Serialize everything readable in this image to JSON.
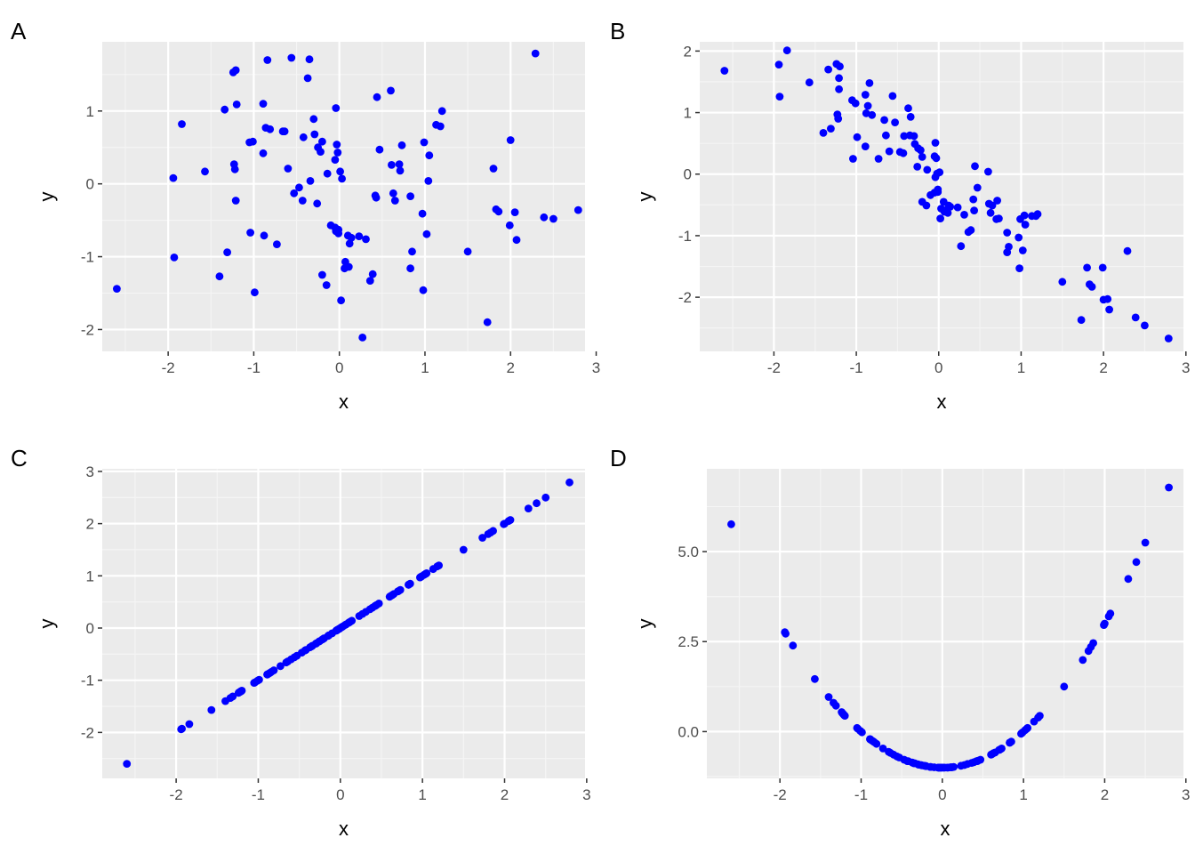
{
  "colors": {
    "panel_bg": "#ebebeb",
    "grid_major": "#ffffff",
    "grid_minor": "#f5f5f5",
    "point": "#0000ff",
    "tick": "#333333",
    "tick_label": "#4d4d4d"
  },
  "chart_data": [
    {
      "type": "scatter",
      "tag": "A",
      "xlabel": "x",
      "ylabel": "y",
      "xlim": [
        -2.77,
        2.87
      ],
      "ylim": [
        -2.3,
        1.95
      ],
      "xticks": [
        -2,
        -1,
        0,
        1,
        2,
        3
      ],
      "yticks": [
        -2,
        -1,
        0,
        1
      ],
      "xtick_labels": [
        "-2",
        "-1",
        "0",
        "1",
        "2",
        "3"
      ],
      "ytick_labels": [
        "-2",
        "-1",
        "0",
        "1"
      ],
      "grid": true,
      "x": [
        -2.6,
        -1.94,
        -1.93,
        -1.84,
        -1.57,
        -1.4,
        -1.34,
        -1.31,
        -1.24,
        -1.23,
        -1.22,
        -1.21,
        -1.21,
        -1.2,
        -1.05,
        -1.04,
        -1.01,
        -0.99,
        -0.89,
        -0.89,
        -0.88,
        -0.86,
        -0.84,
        -0.81,
        -0.73,
        -0.66,
        -0.64,
        -0.6,
        -0.56,
        -0.53,
        -0.47,
        -0.43,
        -0.42,
        -0.37,
        -0.35,
        -0.34,
        -0.3,
        -0.29,
        -0.26,
        -0.25,
        -0.22,
        -0.2,
        -0.2,
        -0.15,
        -0.14,
        -0.1,
        -0.05,
        -0.05,
        -0.04,
        -0.04,
        -0.03,
        -0.02,
        -0.01,
        -0.01,
        0.01,
        0.02,
        0.03,
        0.06,
        0.07,
        0.1,
        0.11,
        0.12,
        0.14,
        0.23,
        0.27,
        0.31,
        0.36,
        0.39,
        0.42,
        0.43,
        0.44,
        0.47,
        0.6,
        0.61,
        0.63,
        0.65,
        0.7,
        0.71,
        0.73,
        0.83,
        0.83,
        0.85,
        0.97,
        0.98,
        0.99,
        1.02,
        1.04,
        1.05,
        1.13,
        1.18,
        1.2,
        1.5,
        1.73,
        1.8,
        1.83,
        1.86,
        1.99,
        2.0,
        2.05,
        2.07,
        2.29,
        2.39,
        2.5,
        2.79
      ],
      "y": [
        -1.44,
        0.08,
        -1.01,
        0.82,
        0.17,
        -1.27,
        1.02,
        -0.94,
        1.53,
        0.27,
        0.2,
        -0.23,
        1.56,
        1.09,
        0.57,
        -0.67,
        0.58,
        -1.49,
        1.1,
        0.42,
        -0.71,
        0.77,
        1.7,
        0.75,
        -0.83,
        0.72,
        0.72,
        0.21,
        1.73,
        -0.13,
        -0.05,
        -0.23,
        0.64,
        1.45,
        1.71,
        0.04,
        0.89,
        0.68,
        -0.27,
        0.5,
        0.44,
        0.58,
        -1.25,
        -1.39,
        0.14,
        -0.57,
        0.33,
        -0.6,
        -0.65,
        1.04,
        0.54,
        0.43,
        -0.63,
        -0.68,
        0.17,
        -1.6,
        0.07,
        -1.16,
        -1.07,
        -0.71,
        -1.14,
        -0.82,
        -0.74,
        -0.72,
        -2.11,
        -0.76,
        -1.33,
        -1.24,
        -0.16,
        -0.19,
        1.19,
        0.47,
        1.28,
        0.26,
        -0.13,
        -0.23,
        0.27,
        0.18,
        0.53,
        -0.17,
        -1.16,
        -0.93,
        -0.41,
        -1.46,
        0.57,
        -0.69,
        0.04,
        0.39,
        0.81,
        0.79,
        1.0,
        -0.93,
        -1.9,
        0.21,
        -0.35,
        -0.38,
        -0.57,
        0.6,
        -0.39,
        -0.77,
        1.79,
        -0.46,
        -0.48,
        -0.36
      ]
    },
    {
      "type": "scatter",
      "tag": "B",
      "xlabel": "x",
      "ylabel": "y",
      "xlim": [
        -2.9,
        2.97
      ],
      "ylim": [
        -2.88,
        2.15
      ],
      "xticks": [
        -2,
        -1,
        0,
        1,
        2,
        3
      ],
      "yticks": [
        -2,
        -1,
        0,
        1,
        2
      ],
      "xtick_labels": [
        "-2",
        "-1",
        "0",
        "1",
        "2",
        "3"
      ],
      "ytick_labels": [
        "-2",
        "-1",
        "0",
        "1",
        "2"
      ],
      "grid": true,
      "x": [
        -2.6,
        -1.94,
        -1.93,
        -1.84,
        -1.57,
        -1.4,
        -1.34,
        -1.31,
        -1.24,
        -1.23,
        -1.22,
        -1.21,
        -1.21,
        -1.2,
        -1.05,
        -1.04,
        -1.01,
        -0.99,
        -0.89,
        -0.89,
        -0.88,
        -0.86,
        -0.84,
        -0.81,
        -0.73,
        -0.66,
        -0.64,
        -0.6,
        -0.56,
        -0.53,
        -0.47,
        -0.43,
        -0.42,
        -0.37,
        -0.35,
        -0.34,
        -0.3,
        -0.29,
        -0.26,
        -0.25,
        -0.22,
        -0.2,
        -0.2,
        -0.15,
        -0.14,
        -0.1,
        -0.05,
        -0.05,
        -0.04,
        -0.04,
        -0.03,
        -0.02,
        -0.01,
        -0.01,
        0.01,
        0.02,
        0.03,
        0.06,
        0.07,
        0.1,
        0.11,
        0.12,
        0.14,
        0.23,
        0.27,
        0.31,
        0.36,
        0.39,
        0.42,
        0.43,
        0.44,
        0.47,
        0.6,
        0.61,
        0.63,
        0.65,
        0.7,
        0.71,
        0.73,
        0.83,
        0.83,
        0.85,
        0.97,
        0.98,
        0.99,
        1.02,
        1.04,
        1.05,
        1.13,
        1.18,
        1.2,
        1.5,
        1.73,
        1.8,
        1.83,
        1.86,
        1.99,
        2.0,
        2.05,
        2.07,
        2.29,
        2.39,
        2.5,
        2.79
      ],
      "y": [
        1.68,
        1.78,
        1.26,
        2.01,
        1.49,
        0.67,
        1.7,
        0.74,
        1.79,
        0.97,
        0.9,
        1.38,
        1.56,
        1.75,
        1.2,
        0.25,
        1.15,
        0.6,
        1.29,
        0.45,
        0.99,
        1.11,
        1.48,
        0.96,
        0.25,
        0.88,
        0.63,
        0.37,
        1.27,
        0.84,
        0.36,
        0.34,
        0.62,
        1.07,
        0.63,
        0.93,
        0.62,
        0.49,
        0.12,
        0.42,
        0.39,
        0.28,
        -0.45,
        -0.51,
        0.07,
        -0.34,
        0.29,
        -0.3,
        -0.05,
        0.51,
        0.26,
        0.01,
        -0.25,
        -0.29,
        0.03,
        -0.72,
        -0.56,
        -0.45,
        -0.61,
        -0.58,
        -0.63,
        -0.51,
        -0.53,
        -0.54,
        -1.17,
        -0.66,
        -0.94,
        -0.91,
        -0.41,
        -0.59,
        0.13,
        -0.22,
        0.04,
        -0.48,
        -0.63,
        -0.51,
        -0.73,
        -0.43,
        -0.72,
        -0.95,
        -1.27,
        -1.18,
        -1.03,
        -1.53,
        -0.73,
        -1.24,
        -0.67,
        -0.82,
        -0.68,
        -0.68,
        -0.65,
        -1.75,
        -2.37,
        -1.52,
        -1.79,
        -1.83,
        -1.52,
        -2.04,
        -2.03,
        -2.2,
        -1.25,
        -2.33,
        -2.46,
        -2.67
      ]
    },
    {
      "type": "scatter",
      "tag": "C",
      "xlabel": "x",
      "ylabel": "y",
      "xlim": [
        -2.9,
        2.98
      ],
      "ylim": [
        -2.88,
        3.05
      ],
      "xticks": [
        -2,
        -1,
        0,
        1,
        2,
        3
      ],
      "yticks": [
        -2,
        -1,
        0,
        1,
        2,
        3
      ],
      "xtick_labels": [
        "-2",
        "-1",
        "0",
        "1",
        "2",
        "3"
      ],
      "ytick_labels": [
        "-2",
        "-1",
        "0",
        "1",
        "2",
        "3"
      ],
      "grid": true,
      "x": [
        -2.6,
        -1.94,
        -1.93,
        -1.84,
        -1.57,
        -1.4,
        -1.34,
        -1.31,
        -1.24,
        -1.23,
        -1.22,
        -1.21,
        -1.21,
        -1.2,
        -1.05,
        -1.04,
        -1.01,
        -0.99,
        -0.89,
        -0.89,
        -0.88,
        -0.86,
        -0.84,
        -0.81,
        -0.73,
        -0.66,
        -0.64,
        -0.6,
        -0.56,
        -0.53,
        -0.47,
        -0.43,
        -0.42,
        -0.37,
        -0.35,
        -0.34,
        -0.3,
        -0.29,
        -0.26,
        -0.25,
        -0.22,
        -0.2,
        -0.2,
        -0.15,
        -0.14,
        -0.1,
        -0.05,
        -0.05,
        -0.04,
        -0.04,
        -0.03,
        -0.02,
        -0.01,
        -0.01,
        0.01,
        0.02,
        0.03,
        0.06,
        0.07,
        0.1,
        0.11,
        0.12,
        0.14,
        0.23,
        0.27,
        0.31,
        0.36,
        0.39,
        0.42,
        0.43,
        0.44,
        0.47,
        0.6,
        0.61,
        0.63,
        0.65,
        0.7,
        0.71,
        0.73,
        0.83,
        0.83,
        0.85,
        0.97,
        0.98,
        0.99,
        1.02,
        1.04,
        1.05,
        1.13,
        1.18,
        1.2,
        1.5,
        1.73,
        1.8,
        1.83,
        1.86,
        1.99,
        2.0,
        2.05,
        2.07,
        2.29,
        2.39,
        2.5,
        2.79
      ],
      "y": [
        -2.6,
        -1.94,
        -1.93,
        -1.84,
        -1.57,
        -1.4,
        -1.34,
        -1.31,
        -1.24,
        -1.23,
        -1.22,
        -1.21,
        -1.21,
        -1.2,
        -1.05,
        -1.04,
        -1.01,
        -0.99,
        -0.89,
        -0.89,
        -0.88,
        -0.86,
        -0.84,
        -0.81,
        -0.73,
        -0.66,
        -0.64,
        -0.6,
        -0.56,
        -0.53,
        -0.47,
        -0.43,
        -0.42,
        -0.37,
        -0.35,
        -0.34,
        -0.3,
        -0.29,
        -0.26,
        -0.25,
        -0.22,
        -0.2,
        -0.2,
        -0.15,
        -0.14,
        -0.1,
        -0.05,
        -0.05,
        -0.04,
        -0.04,
        -0.03,
        -0.02,
        -0.01,
        -0.01,
        0.01,
        0.02,
        0.03,
        0.06,
        0.07,
        0.1,
        0.11,
        0.12,
        0.14,
        0.23,
        0.27,
        0.31,
        0.36,
        0.39,
        0.42,
        0.43,
        0.44,
        0.47,
        0.6,
        0.61,
        0.63,
        0.65,
        0.7,
        0.71,
        0.73,
        0.83,
        0.83,
        0.85,
        0.97,
        0.98,
        0.99,
        1.02,
        1.04,
        1.05,
        1.13,
        1.18,
        1.2,
        1.5,
        1.73,
        1.8,
        1.83,
        1.86,
        1.99,
        2.0,
        2.05,
        2.07,
        2.29,
        2.39,
        2.5,
        2.79
      ]
    },
    {
      "type": "scatter",
      "tag": "D",
      "xlabel": "x",
      "ylabel": "y",
      "xlim": [
        -2.9,
        2.97
      ],
      "ylim": [
        -1.3,
        7.3
      ],
      "xticks": [
        -2,
        -1,
        0,
        1,
        2,
        3
      ],
      "yticks": [
        0,
        2.5,
        5
      ],
      "xtick_labels": [
        "-2",
        "-1",
        "0",
        "1",
        "2",
        "3"
      ],
      "ytick_labels": [
        "0.0",
        "2.5",
        "5.0"
      ],
      "grid": true,
      "x": [
        -2.6,
        -1.94,
        -1.93,
        -1.84,
        -1.57,
        -1.4,
        -1.34,
        -1.31,
        -1.24,
        -1.23,
        -1.22,
        -1.21,
        -1.21,
        -1.2,
        -1.05,
        -1.04,
        -1.01,
        -0.99,
        -0.89,
        -0.89,
        -0.88,
        -0.86,
        -0.84,
        -0.81,
        -0.73,
        -0.66,
        -0.64,
        -0.6,
        -0.56,
        -0.53,
        -0.47,
        -0.43,
        -0.42,
        -0.37,
        -0.35,
        -0.34,
        -0.3,
        -0.29,
        -0.26,
        -0.25,
        -0.22,
        -0.2,
        -0.2,
        -0.15,
        -0.14,
        -0.1,
        -0.05,
        -0.05,
        -0.04,
        -0.04,
        -0.03,
        -0.02,
        -0.01,
        -0.01,
        0.01,
        0.02,
        0.03,
        0.06,
        0.07,
        0.1,
        0.11,
        0.12,
        0.14,
        0.23,
        0.27,
        0.31,
        0.36,
        0.39,
        0.42,
        0.43,
        0.44,
        0.47,
        0.6,
        0.61,
        0.63,
        0.65,
        0.7,
        0.71,
        0.73,
        0.83,
        0.83,
        0.85,
        0.97,
        0.98,
        0.99,
        1.02,
        1.04,
        1.05,
        1.13,
        1.18,
        1.2,
        1.5,
        1.73,
        1.8,
        1.83,
        1.86,
        1.99,
        2.0,
        2.05,
        2.07,
        2.29,
        2.39,
        2.5,
        2.79
      ],
      "y": [
        5.76,
        2.76,
        2.72,
        2.39,
        1.46,
        0.96,
        0.8,
        0.72,
        0.54,
        0.51,
        0.49,
        0.46,
        0.46,
        0.44,
        0.1,
        0.08,
        0.02,
        -0.02,
        -0.21,
        -0.21,
        -0.23,
        -0.26,
        -0.29,
        -0.34,
        -0.47,
        -0.56,
        -0.59,
        -0.64,
        -0.69,
        -0.72,
        -0.78,
        -0.82,
        -0.82,
        -0.86,
        -0.88,
        -0.88,
        -0.91,
        -0.92,
        -0.93,
        -0.94,
        -0.95,
        -0.96,
        -0.96,
        -0.98,
        -0.98,
        -0.99,
        -1.0,
        -1.0,
        -1.0,
        -1.0,
        -1.0,
        -1.0,
        -1.0,
        -1.0,
        -1.0,
        -1.0,
        -1.0,
        -1.0,
        -1.0,
        -0.99,
        -0.99,
        -0.99,
        -0.98,
        -0.95,
        -0.93,
        -0.9,
        -0.87,
        -0.85,
        -0.82,
        -0.82,
        -0.81,
        -0.78,
        -0.64,
        -0.63,
        -0.6,
        -0.58,
        -0.51,
        -0.5,
        -0.47,
        -0.31,
        -0.31,
        -0.28,
        -0.06,
        -0.04,
        -0.02,
        0.04,
        0.08,
        0.1,
        0.28,
        0.39,
        0.44,
        1.25,
        1.99,
        2.24,
        2.35,
        2.46,
        2.96,
        3.0,
        3.2,
        3.28,
        4.24,
        4.71,
        5.25,
        6.78
      ]
    }
  ]
}
